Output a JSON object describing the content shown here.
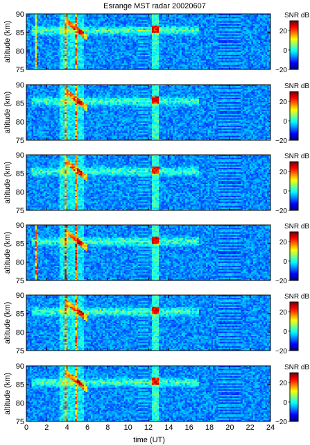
{
  "chart_data": {
    "type": "heatmap",
    "title": "Esrange MST radar 20020607",
    "xlabel": "time (UT)",
    "ylabel": "altitude (km)",
    "xlim": [
      0,
      24
    ],
    "ylim": [
      75,
      90
    ],
    "x_ticks": [
      "0",
      "2",
      "4",
      "6",
      "8",
      "10",
      "12",
      "14",
      "16",
      "18",
      "20",
      "22",
      "24"
    ],
    "y_ticks": [
      "75",
      "80",
      "85",
      "90"
    ],
    "colorbar": {
      "label": "SNR dB",
      "range": [
        -20,
        30
      ],
      "ticks": [
        "20",
        "0",
        "−20"
      ],
      "colormap": [
        "#00007f",
        "#0000ff",
        "#007fff",
        "#00ffff",
        "#7fff7f",
        "#ffff00",
        "#ff7f00",
        "#ff0000",
        "#7f0000"
      ]
    },
    "panels": [
      {
        "id": 1,
        "bright_bands_ut": [
          [
            0.9,
            1.1
          ],
          [
            3.7,
            4.0
          ],
          [
            4.8,
            5.0
          ]
        ]
      },
      {
        "id": 2,
        "bright_bands_ut": [
          [
            3.7,
            4.0
          ],
          [
            4.8,
            5.0
          ]
        ]
      },
      {
        "id": 3,
        "bright_bands_ut": [
          [
            3.7,
            4.0
          ],
          [
            4.8,
            5.0
          ]
        ]
      },
      {
        "id": 4,
        "bright_bands_ut": [
          [
            0.9,
            1.1
          ],
          [
            3.7,
            4.0
          ],
          [
            4.8,
            5.0
          ]
        ]
      },
      {
        "id": 5,
        "bright_bands_ut": [
          [
            3.7,
            4.0
          ],
          [
            4.8,
            5.0
          ]
        ]
      },
      {
        "id": 6,
        "bright_bands_ut": [
          [
            3.7,
            4.0
          ],
          [
            4.8,
            5.0
          ]
        ]
      }
    ],
    "features": {
      "echo_layer_altitude_km": 85.5,
      "descending_echo_ut": [
        5.0,
        6.0
      ],
      "peak_echo_ut": 12.7,
      "banded_interval_ut": [
        18.9,
        21.0
      ],
      "secondary_banded_interval_ut": [
        11.0,
        12.0
      ]
    }
  }
}
